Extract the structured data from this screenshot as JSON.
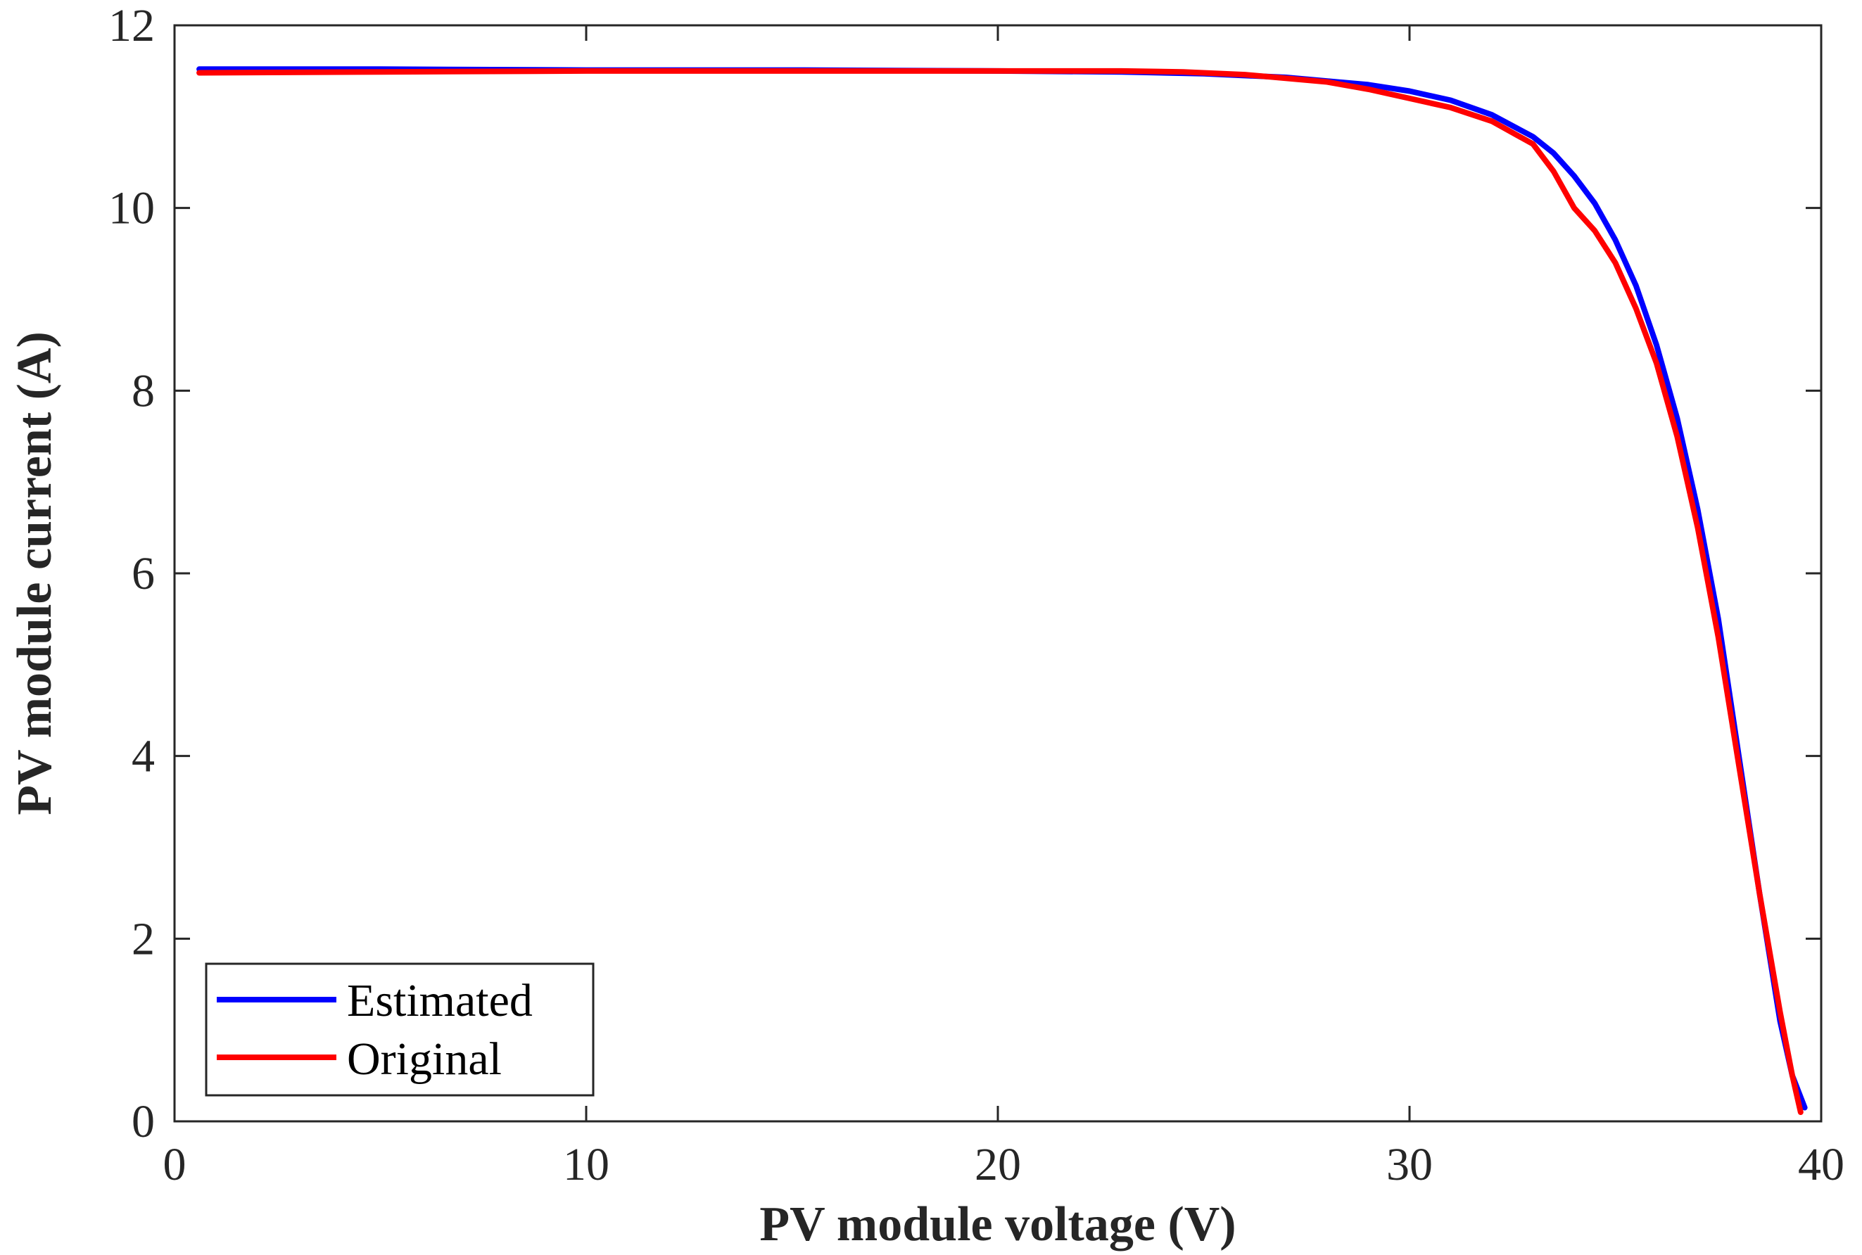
{
  "chart_data": {
    "type": "line",
    "title": "",
    "xlabel": "PV module voltage (V)",
    "ylabel": "PV module current (A)",
    "xlim": [
      0,
      40
    ],
    "ylim": [
      0,
      12
    ],
    "xticks": [
      "0",
      "10",
      "20",
      "30",
      "40"
    ],
    "yticks": [
      "0",
      "2",
      "4",
      "6",
      "8",
      "10",
      "12"
    ],
    "grid": false,
    "legend_position": "bottom-left",
    "series": [
      {
        "name": "Estimated",
        "color": "#0000ff",
        "x": [
          0.6,
          5,
          10,
          15,
          20,
          23,
          25,
          27,
          29,
          30,
          31,
          32,
          33,
          33.5,
          34,
          34.5,
          35,
          35.5,
          36,
          36.5,
          37,
          37.5,
          38,
          38.5,
          39,
          39.3,
          39.6
        ],
        "y": [
          11.52,
          11.52,
          11.51,
          11.51,
          11.5,
          11.49,
          11.47,
          11.43,
          11.35,
          11.28,
          11.18,
          11.02,
          10.78,
          10.6,
          10.35,
          10.05,
          9.65,
          9.15,
          8.5,
          7.7,
          6.7,
          5.5,
          4.0,
          2.5,
          1.1,
          0.5,
          0.15
        ]
      },
      {
        "name": "Original",
        "color": "#ff0000",
        "x": [
          0.6,
          5,
          10,
          15,
          20,
          23,
          24.5,
          26,
          28,
          29,
          30,
          31,
          32,
          33,
          33.5,
          34,
          34.5,
          35,
          35.5,
          36,
          36.5,
          37,
          37.5,
          38,
          38.5,
          39,
          39.3,
          39.5
        ],
        "y": [
          11.48,
          11.49,
          11.5,
          11.5,
          11.5,
          11.5,
          11.49,
          11.46,
          11.38,
          11.3,
          11.2,
          11.1,
          10.95,
          10.7,
          10.4,
          10.0,
          9.75,
          9.4,
          8.9,
          8.3,
          7.5,
          6.5,
          5.3,
          3.9,
          2.5,
          1.2,
          0.5,
          0.1
        ]
      }
    ]
  }
}
